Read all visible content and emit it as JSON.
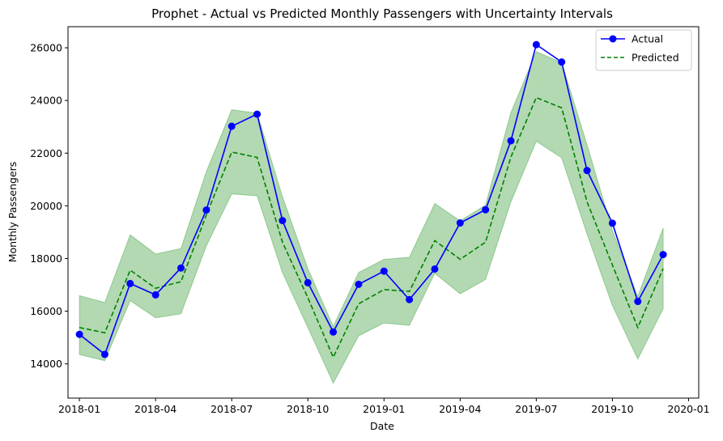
{
  "chart_data": {
    "type": "line",
    "title": "Prophet - Actual vs Predicted Monthly Passengers with Uncertainty Intervals",
    "xlabel": "Date",
    "ylabel": "Monthly Passengers",
    "x": [
      "2018-01",
      "2018-02",
      "2018-03",
      "2018-04",
      "2018-05",
      "2018-06",
      "2018-07",
      "2018-08",
      "2018-09",
      "2018-10",
      "2018-11",
      "2018-12",
      "2019-01",
      "2019-02",
      "2019-03",
      "2019-04",
      "2019-05",
      "2019-06",
      "2019-07",
      "2019-08",
      "2019-09",
      "2019-10",
      "2019-11",
      "2019-12"
    ],
    "xlim": [
      "2017-12",
      "2020-01"
    ],
    "ylim": [
      12700,
      26800
    ],
    "x_ticks": [
      "2018-01",
      "2018-04",
      "2018-07",
      "2018-10",
      "2019-01",
      "2019-04",
      "2019-07",
      "2019-10",
      "2020-01"
    ],
    "y_ticks": [
      14000,
      16000,
      18000,
      20000,
      22000,
      24000,
      26000
    ],
    "series": [
      {
        "name": "Actual",
        "color": "#0000ff",
        "style": "solid-with-markers",
        "values": [
          15120,
          14360,
          17050,
          16620,
          17640,
          19840,
          23020,
          23480,
          19440,
          17080,
          15210,
          17020,
          17520,
          16440,
          17600,
          19350,
          19850,
          22470,
          26120,
          25460,
          21340,
          19340,
          16370,
          18150
        ]
      },
      {
        "name": "Predicted",
        "color": "#008000",
        "style": "dashed",
        "values": [
          15380,
          15180,
          17560,
          16870,
          17120,
          19650,
          22040,
          21840,
          18620,
          16510,
          14250,
          16280,
          16820,
          16750,
          18680,
          17970,
          18620,
          21850,
          24110,
          23720,
          20150,
          17750,
          15380,
          17620
        ]
      }
    ],
    "uncertainty_band": {
      "color": "#008000",
      "lower": [
        14350,
        14120,
        16400,
        15750,
        15900,
        18480,
        20450,
        20380,
        17460,
        15380,
        13270,
        15060,
        15550,
        15460,
        17440,
        16660,
        17200,
        20150,
        22450,
        21820,
        18930,
        16210,
        14180,
        16100
      ],
      "upper": [
        16590,
        16330,
        18900,
        18170,
        18380,
        21300,
        23650,
        23520,
        20350,
        17620,
        15420,
        17470,
        17970,
        18050,
        20090,
        19430,
        20030,
        23540,
        25850,
        25440,
        22320,
        19060,
        16560,
        19160
      ]
    },
    "legend_position": "top-right",
    "grid": false
  }
}
